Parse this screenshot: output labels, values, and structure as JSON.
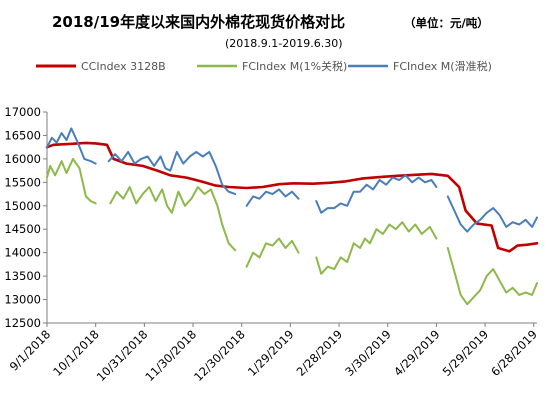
{
  "chart_data": {
    "type": "line",
    "title": "2018/19年度以来国内外棉花现货价格对比",
    "unit_note": "（单位：元/吨）",
    "subtitle": "(2018.9.1-2019.6.30)",
    "ylim": [
      12500,
      17000
    ],
    "yticks": [
      12500,
      13000,
      13500,
      14000,
      14500,
      15000,
      15500,
      16000,
      16500,
      17000
    ],
    "x_range": [
      "2018-09-01",
      "2019-06-30"
    ],
    "xticks": [
      "9/1/2018",
      "10/1/2018",
      "10/31/2018",
      "11/30/2018",
      "12/30/2018",
      "1/29/2019",
      "2/28/2019",
      "3/30/2019",
      "4/29/2019",
      "5/29/2019",
      "6/28/2019"
    ],
    "grid": false,
    "legend_position": "top",
    "series": [
      {
        "name": "CCIndex 3128B",
        "color": "#c00000",
        "points": [
          [
            "2018-09-01",
            16250
          ],
          [
            "2018-09-05",
            16300
          ],
          [
            "2018-09-15",
            16320
          ],
          [
            "2018-09-25",
            16340
          ],
          [
            "2018-10-01",
            16330
          ],
          [
            "2018-10-08",
            16300
          ],
          [
            "2018-10-12",
            16000
          ],
          [
            "2018-10-20",
            15900
          ],
          [
            "2018-10-30",
            15850
          ],
          [
            "2018-11-08",
            15750
          ],
          [
            "2018-11-16",
            15650
          ],
          [
            "2018-11-26",
            15600
          ],
          [
            "2018-12-05",
            15520
          ],
          [
            "2018-12-14",
            15430
          ],
          [
            "2018-12-22",
            15400
          ],
          [
            "2019-01-02",
            15380
          ],
          [
            "2019-01-12",
            15400
          ],
          [
            "2019-01-22",
            15460
          ],
          [
            "2019-01-31",
            15480
          ],
          [
            "2019-02-12",
            15470
          ],
          [
            "2019-02-22",
            15490
          ],
          [
            "2019-03-04",
            15520
          ],
          [
            "2019-03-14",
            15580
          ],
          [
            "2019-03-24",
            15610
          ],
          [
            "2019-04-05",
            15640
          ],
          [
            "2019-04-16",
            15660
          ],
          [
            "2019-04-26",
            15680
          ],
          [
            "2019-05-06",
            15640
          ],
          [
            "2019-05-13",
            15400
          ],
          [
            "2019-05-17",
            14900
          ],
          [
            "2019-05-24",
            14620
          ],
          [
            "2019-06-02",
            14580
          ],
          [
            "2019-06-06",
            14100
          ],
          [
            "2019-06-13",
            14030
          ],
          [
            "2019-06-18",
            14150
          ],
          [
            "2019-06-24",
            14170
          ],
          [
            "2019-06-30",
            14200
          ]
        ]
      },
      {
        "name": "FCIndex M(1%关税)",
        "color": "#8db84a",
        "points": [
          [
            "2018-09-01",
            15600
          ],
          [
            "2018-09-03",
            15850
          ],
          [
            "2018-09-06",
            15650
          ],
          [
            "2018-09-10",
            15950
          ],
          [
            "2018-09-13",
            15700
          ],
          [
            "2018-09-17",
            16000
          ],
          [
            "2018-09-21",
            15800
          ],
          [
            "2018-09-25",
            15200
          ],
          [
            "2018-09-28",
            15100
          ],
          [
            "2018-10-01",
            15050
          ],
          null,
          [
            "2018-10-10",
            15050
          ],
          [
            "2018-10-14",
            15300
          ],
          [
            "2018-10-18",
            15150
          ],
          [
            "2018-10-22",
            15400
          ],
          [
            "2018-10-26",
            15050
          ],
          [
            "2018-10-30",
            15250
          ],
          [
            "2018-11-03",
            15400
          ],
          [
            "2018-11-07",
            15100
          ],
          [
            "2018-11-11",
            15350
          ],
          [
            "2018-11-14",
            15000
          ],
          [
            "2018-11-17",
            14850
          ],
          [
            "2018-11-21",
            15300
          ],
          [
            "2018-11-25",
            15000
          ],
          [
            "2018-11-29",
            15150
          ],
          [
            "2018-12-03",
            15400
          ],
          [
            "2018-12-07",
            15250
          ],
          [
            "2018-12-11",
            15350
          ],
          [
            "2018-12-15",
            15000
          ],
          [
            "2018-12-18",
            14600
          ],
          [
            "2018-12-22",
            14200
          ],
          [
            "2018-12-26",
            14050
          ],
          null,
          [
            "2019-01-02",
            13700
          ],
          [
            "2019-01-06",
            14000
          ],
          [
            "2019-01-10",
            13900
          ],
          [
            "2019-01-14",
            14200
          ],
          [
            "2019-01-18",
            14150
          ],
          [
            "2019-01-22",
            14300
          ],
          [
            "2019-01-26",
            14100
          ],
          [
            "2019-01-30",
            14250
          ],
          [
            "2019-02-03",
            14000
          ],
          null,
          [
            "2019-02-14",
            13900
          ],
          [
            "2019-02-17",
            13550
          ],
          [
            "2019-02-21",
            13700
          ],
          [
            "2019-02-25",
            13650
          ],
          [
            "2019-03-01",
            13900
          ],
          [
            "2019-03-05",
            13800
          ],
          [
            "2019-03-09",
            14200
          ],
          [
            "2019-03-13",
            14100
          ],
          [
            "2019-03-16",
            14300
          ],
          [
            "2019-03-19",
            14200
          ],
          [
            "2019-03-23",
            14500
          ],
          [
            "2019-03-27",
            14400
          ],
          [
            "2019-03-31",
            14600
          ],
          [
            "2019-04-04",
            14500
          ],
          [
            "2019-04-08",
            14650
          ],
          [
            "2019-04-12",
            14450
          ],
          [
            "2019-04-16",
            14600
          ],
          [
            "2019-04-20",
            14400
          ],
          [
            "2019-04-25",
            14550
          ],
          [
            "2019-04-29",
            14300
          ],
          null,
          [
            "2019-05-06",
            14100
          ],
          [
            "2019-05-10",
            13600
          ],
          [
            "2019-05-14",
            13100
          ],
          [
            "2019-05-18",
            12900
          ],
          [
            "2019-05-22",
            13050
          ],
          [
            "2019-05-26",
            13200
          ],
          [
            "2019-05-30",
            13500
          ],
          [
            "2019-06-03",
            13650
          ],
          [
            "2019-06-07",
            13400
          ],
          [
            "2019-06-11",
            13150
          ],
          [
            "2019-06-15",
            13250
          ],
          [
            "2019-06-19",
            13100
          ],
          [
            "2019-06-23",
            13150
          ],
          [
            "2019-06-27",
            13100
          ],
          [
            "2019-06-30",
            13350
          ]
        ]
      },
      {
        "name": "FCIndex M(滑准税)",
        "color": "#4a7ebb",
        "points": [
          [
            "2018-09-01",
            16250
          ],
          [
            "2018-09-04",
            16450
          ],
          [
            "2018-09-07",
            16350
          ],
          [
            "2018-09-10",
            16550
          ],
          [
            "2018-09-13",
            16400
          ],
          [
            "2018-09-16",
            16650
          ],
          [
            "2018-09-20",
            16350
          ],
          [
            "2018-09-24",
            16000
          ],
          [
            "2018-09-28",
            15950
          ],
          [
            "2018-10-01",
            15900
          ],
          null,
          [
            "2018-10-09",
            15950
          ],
          [
            "2018-10-13",
            16100
          ],
          [
            "2018-10-17",
            15950
          ],
          [
            "2018-10-21",
            16150
          ],
          [
            "2018-10-25",
            15900
          ],
          [
            "2018-10-29",
            16000
          ],
          [
            "2018-11-02",
            16050
          ],
          [
            "2018-11-06",
            15850
          ],
          [
            "2018-11-10",
            16050
          ],
          [
            "2018-11-13",
            15800
          ],
          [
            "2018-11-16",
            15750
          ],
          [
            "2018-11-20",
            16150
          ],
          [
            "2018-11-24",
            15900
          ],
          [
            "2018-11-28",
            16050
          ],
          [
            "2018-12-02",
            16150
          ],
          [
            "2018-12-06",
            16050
          ],
          [
            "2018-12-10",
            16150
          ],
          [
            "2018-12-14",
            15850
          ],
          [
            "2018-12-18",
            15450
          ],
          [
            "2018-12-22",
            15300
          ],
          [
            "2018-12-26",
            15250
          ],
          null,
          [
            "2019-01-02",
            15000
          ],
          [
            "2019-01-06",
            15200
          ],
          [
            "2019-01-10",
            15150
          ],
          [
            "2019-01-14",
            15300
          ],
          [
            "2019-01-18",
            15250
          ],
          [
            "2019-01-22",
            15350
          ],
          [
            "2019-01-26",
            15200
          ],
          [
            "2019-01-30",
            15300
          ],
          [
            "2019-02-03",
            15150
          ],
          null,
          [
            "2019-02-14",
            15100
          ],
          [
            "2019-02-17",
            14850
          ],
          [
            "2019-02-21",
            14950
          ],
          [
            "2019-02-25",
            14950
          ],
          [
            "2019-03-01",
            15050
          ],
          [
            "2019-03-05",
            15000
          ],
          [
            "2019-03-09",
            15300
          ],
          [
            "2019-03-13",
            15300
          ],
          [
            "2019-03-17",
            15450
          ],
          [
            "2019-03-21",
            15350
          ],
          [
            "2019-03-25",
            15550
          ],
          [
            "2019-03-29",
            15450
          ],
          [
            "2019-04-02",
            15600
          ],
          [
            "2019-04-06",
            15550
          ],
          [
            "2019-04-10",
            15650
          ],
          [
            "2019-04-14",
            15500
          ],
          [
            "2019-04-18",
            15600
          ],
          [
            "2019-04-22",
            15500
          ],
          [
            "2019-04-26",
            15550
          ],
          [
            "2019-04-29",
            15400
          ],
          null,
          [
            "2019-05-06",
            15200
          ],
          [
            "2019-05-10",
            14900
          ],
          [
            "2019-05-14",
            14600
          ],
          [
            "2019-05-18",
            14450
          ],
          [
            "2019-05-22",
            14600
          ],
          [
            "2019-05-26",
            14700
          ],
          [
            "2019-05-30",
            14850
          ],
          [
            "2019-06-03",
            14950
          ],
          [
            "2019-06-07",
            14800
          ],
          [
            "2019-06-11",
            14550
          ],
          [
            "2019-06-15",
            14650
          ],
          [
            "2019-06-19",
            14600
          ],
          [
            "2019-06-23",
            14700
          ],
          [
            "2019-06-27",
            14550
          ],
          [
            "2019-06-30",
            14750
          ]
        ]
      }
    ]
  }
}
